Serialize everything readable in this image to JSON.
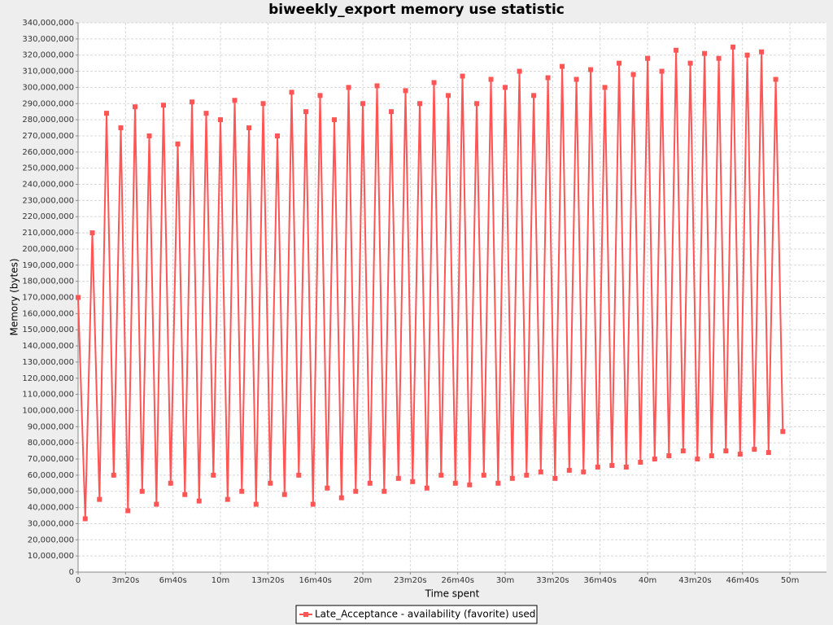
{
  "chart_data": {
    "type": "line",
    "title": "biweekly_export memory use statistic",
    "x_label": "Time spent",
    "y_label": "Memory (bytes)",
    "x": [
      0,
      30,
      60,
      90,
      120,
      150,
      180,
      210,
      240,
      270,
      300,
      330,
      360,
      390,
      420,
      450,
      480,
      510,
      540,
      570,
      600,
      630,
      660,
      690,
      720,
      750,
      780,
      810,
      840,
      870,
      900,
      930,
      960,
      990,
      1020,
      1050,
      1080,
      1110,
      1140,
      1170,
      1200,
      1230,
      1260,
      1290,
      1320,
      1350,
      1380,
      1410,
      1440,
      1470,
      1500,
      1530,
      1560,
      1590,
      1620,
      1650,
      1680,
      1710,
      1740,
      1770,
      1800,
      1830,
      1860,
      1890,
      1920,
      1950,
      1980,
      2010,
      2040,
      2070,
      2100,
      2130,
      2160,
      2190,
      2220,
      2250,
      2280,
      2310,
      2340,
      2370,
      2400,
      2430,
      2460,
      2490,
      2520,
      2550,
      2580,
      2610,
      2640,
      2670,
      2700,
      2730,
      2760,
      2790,
      2820,
      2850,
      2880,
      2910,
      2940,
      2970
    ],
    "series": [
      {
        "name": "Late_Acceptance - availability (favorite) used",
        "color": "#ff5555",
        "values": [
          170000000,
          33000000,
          210000000,
          45000000,
          284000000,
          60000000,
          275000000,
          38000000,
          288000000,
          50000000,
          270000000,
          42000000,
          289000000,
          55000000,
          265000000,
          48000000,
          291000000,
          44000000,
          284000000,
          60000000,
          280000000,
          45000000,
          292000000,
          50000000,
          275000000,
          42000000,
          290000000,
          55000000,
          270000000,
          48000000,
          297000000,
          60000000,
          285000000,
          42000000,
          295000000,
          52000000,
          280000000,
          46000000,
          300000000,
          50000000,
          290000000,
          55000000,
          301000000,
          50000000,
          285000000,
          58000000,
          298000000,
          56000000,
          290000000,
          52000000,
          303000000,
          60000000,
          295000000,
          55000000,
          307000000,
          54000000,
          290000000,
          60000000,
          305000000,
          55000000,
          300000000,
          58000000,
          310000000,
          60000000,
          295000000,
          62000000,
          306000000,
          58000000,
          313000000,
          63000000,
          305000000,
          62000000,
          311000000,
          65000000,
          300000000,
          66000000,
          315000000,
          65000000,
          308000000,
          68000000,
          318000000,
          70000000,
          310000000,
          72000000,
          323000000,
          75000000,
          315000000,
          70000000,
          321000000,
          72000000,
          318000000,
          75000000,
          325000000,
          73000000,
          320000000,
          76000000,
          322000000,
          74000000,
          305000000,
          87000000
        ]
      }
    ],
    "xlim": [
      0,
      3154
    ],
    "ylim": [
      0,
      340000000
    ],
    "xticks": [
      0,
      {
        "value": 200,
        "label": "3m20s"
      },
      {
        "value": 400,
        "label": "6m40s"
      },
      {
        "value": 600,
        "label": "10m"
      },
      {
        "value": 800,
        "label": "13m20s"
      },
      {
        "value": 1000,
        "label": "16m40s"
      },
      {
        "value": 1200,
        "label": "20m"
      },
      {
        "value": 1400,
        "label": "23m20s"
      },
      {
        "value": 1600,
        "label": "26m40s"
      },
      {
        "value": 1800,
        "label": "30m"
      },
      {
        "value": 2000,
        "label": "33m20s"
      },
      {
        "value": 2200,
        "label": "36m40s"
      },
      {
        "value": 2400,
        "label": "40m"
      },
      {
        "value": 2600,
        "label": "43m20s"
      },
      {
        "value": 2800,
        "label": "46m40s"
      },
      {
        "value": 3000,
        "label": "50m"
      }
    ],
    "yticks": [
      0,
      {
        "value": 10000000,
        "label": "10,000,000"
      },
      {
        "value": 20000000,
        "label": "20,000,000"
      },
      {
        "value": 30000000,
        "label": "30,000,000"
      },
      {
        "value": 40000000,
        "label": "40,000,000"
      },
      {
        "value": 50000000,
        "label": "50,000,000"
      },
      {
        "value": 60000000,
        "label": "60,000,000"
      },
      {
        "value": 70000000,
        "label": "70,000,000"
      },
      {
        "value": 80000000,
        "label": "80,000,000"
      },
      {
        "value": 90000000,
        "label": "90,000,000"
      },
      {
        "value": 100000000,
        "label": "100,000,000"
      },
      {
        "value": 110000000,
        "label": "110,000,000"
      },
      {
        "value": 120000000,
        "label": "120,000,000"
      },
      {
        "value": 130000000,
        "label": "130,000,000"
      },
      {
        "value": 140000000,
        "label": "140,000,000"
      },
      {
        "value": 150000000,
        "label": "150,000,000"
      },
      {
        "value": 160000000,
        "label": "160,000,000"
      },
      {
        "value": 170000000,
        "label": "170,000,000"
      },
      {
        "value": 180000000,
        "label": "180,000,000"
      },
      {
        "value": 190000000,
        "label": "190,000,000"
      },
      {
        "value": 200000000,
        "label": "200,000,000"
      },
      {
        "value": 210000000,
        "label": "210,000,000"
      },
      {
        "value": 220000000,
        "label": "220,000,000"
      },
      {
        "value": 230000000,
        "label": "230,000,000"
      },
      {
        "value": 240000000,
        "label": "240,000,000"
      },
      {
        "value": 250000000,
        "label": "250,000,000"
      },
      {
        "value": 260000000,
        "label": "260,000,000"
      },
      {
        "value": 270000000,
        "label": "270,000,000"
      },
      {
        "value": 280000000,
        "label": "280,000,000"
      },
      {
        "value": 290000000,
        "label": "290,000,000"
      },
      {
        "value": 300000000,
        "label": "300,000,000"
      },
      {
        "value": 310000000,
        "label": "310,000,000"
      },
      {
        "value": 320000000,
        "label": "320,000,000"
      },
      {
        "value": 330000000,
        "label": "330,000,000"
      },
      {
        "value": 340000000,
        "label": "340,000,000"
      }
    ],
    "grid": true,
    "legend": "bottom"
  }
}
